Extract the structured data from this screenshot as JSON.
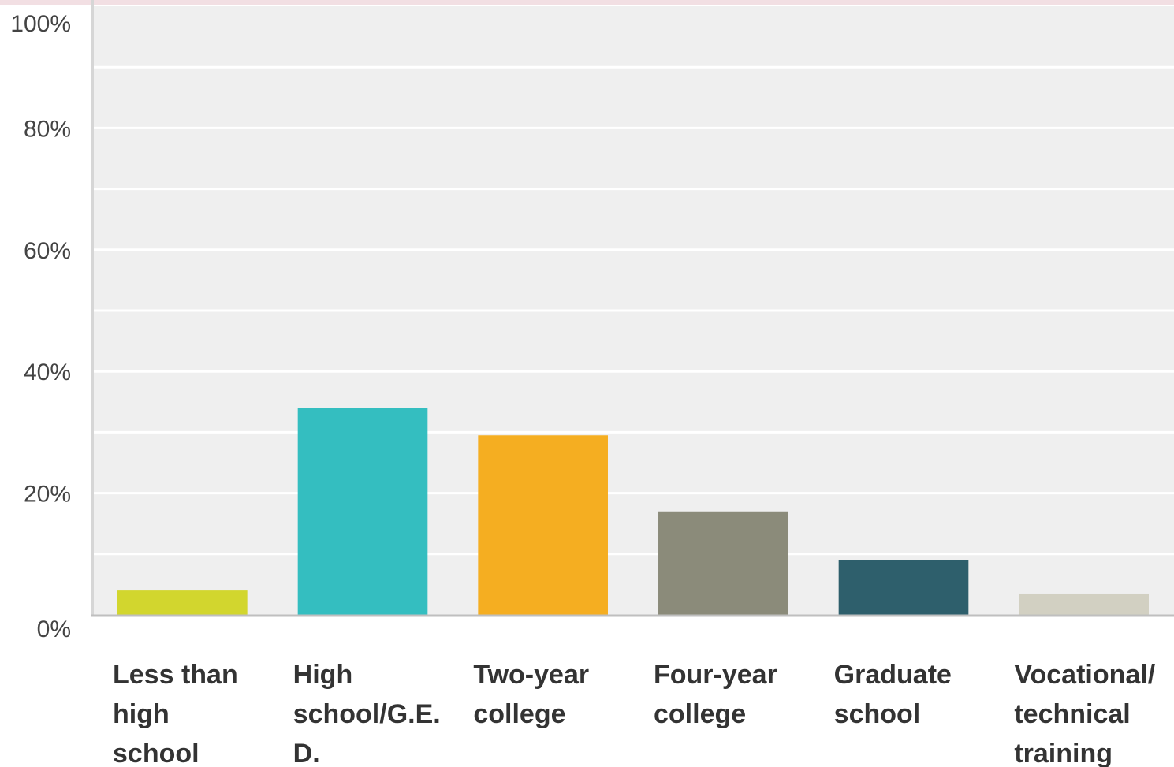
{
  "chart_data": {
    "type": "bar",
    "title": "",
    "xlabel": "",
    "ylabel": "",
    "ylim": [
      0,
      100
    ],
    "yticks": [
      "0%",
      "20%",
      "40%",
      "60%",
      "80%",
      "100%"
    ],
    "grid": true,
    "categories": [
      [
        "Less than",
        "high",
        "school"
      ],
      [
        "High",
        "school/G.E.",
        "D."
      ],
      [
        "Two-year",
        "college"
      ],
      [
        "Four-year",
        "college"
      ],
      [
        "Graduate",
        "school"
      ],
      [
        "Vocational/",
        "technical",
        "training"
      ]
    ],
    "values": [
      4,
      34,
      29.5,
      17,
      9,
      3.5
    ],
    "colors": [
      "#d2d62e",
      "#34bec0",
      "#f5ae21",
      "#8b8b7a",
      "#2e5f6c",
      "#d2d0c2"
    ]
  }
}
